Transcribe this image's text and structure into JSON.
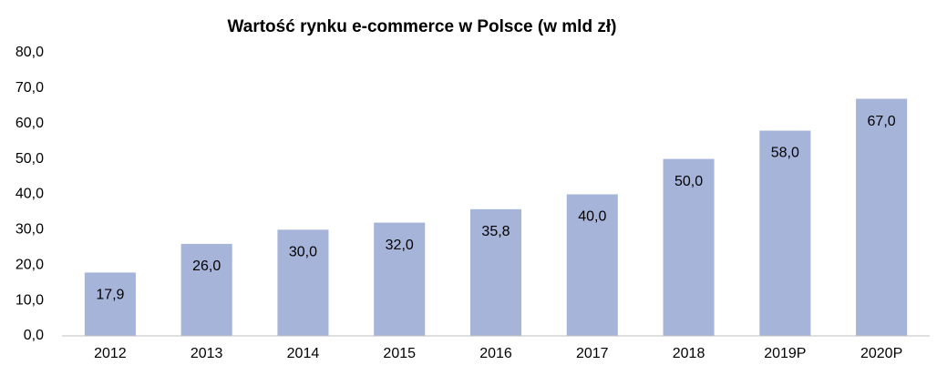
{
  "chart_data": {
    "type": "bar",
    "title": "Wartość rynku e-commerce w Polsce (w mld zł)",
    "categories": [
      "2012",
      "2013",
      "2014",
      "2015",
      "2016",
      "2017",
      "2018",
      "2019P",
      "2020P"
    ],
    "values": [
      17.9,
      26,
      30,
      32,
      35.8,
      40,
      50,
      58,
      67
    ],
    "value_labels": [
      "17,9",
      "26,0",
      "30,0",
      "32,0",
      "35,8",
      "40,0",
      "50,0",
      "58,0",
      "67,0"
    ],
    "color": "#a6b4da",
    "ylim": [
      0,
      80
    ],
    "yticks": [
      {
        "value": 0,
        "label": "0,0"
      },
      {
        "value": 10,
        "label": "10,0"
      },
      {
        "value": 20,
        "label": "20,0"
      },
      {
        "value": 30,
        "label": "30,0"
      },
      {
        "value": 40,
        "label": "40,0"
      },
      {
        "value": 50,
        "label": "50,0"
      },
      {
        "value": 60,
        "label": "60,0"
      },
      {
        "value": 70,
        "label": "70,0"
      },
      {
        "value": 80,
        "label": "80,0"
      }
    ],
    "grid": false
  }
}
